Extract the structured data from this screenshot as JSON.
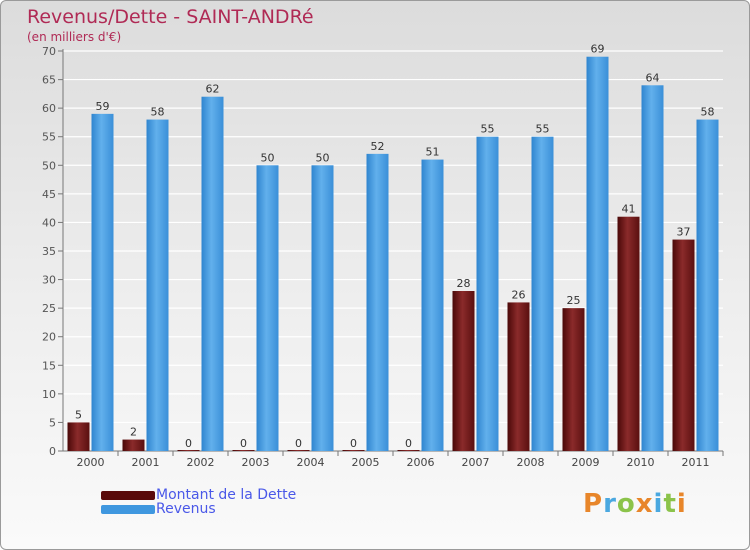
{
  "title": "Revenus/Dette - SAINT-ANDRé",
  "subtitle": "(en milliers d'€)",
  "colors": {
    "debt": "#7a1a1a",
    "revenue": "#3f97df",
    "text": "#b02a55",
    "legend_text": "#4a58e8",
    "grid": "#ffffff"
  },
  "legend": {
    "items": [
      {
        "label": "Montant de la Dette",
        "color": "#5a0a0a"
      },
      {
        "label": "Revenus",
        "color": "#3f97df"
      }
    ]
  },
  "logo": {
    "letters": [
      "P",
      "r",
      "o",
      "x",
      "i",
      "t",
      "i"
    ],
    "colors": [
      "#e8862a",
      "#4aa8e0",
      "#8bc34a",
      "#e8862a",
      "#4aa8e0",
      "#8bc34a",
      "#e8862a"
    ]
  },
  "chart_data": {
    "type": "bar",
    "categories": [
      "2000",
      "2001",
      "2002",
      "2003",
      "2004",
      "2005",
      "2006",
      "2007",
      "2008",
      "2009",
      "2010",
      "2011"
    ],
    "series": [
      {
        "name": "Montant de la Dette",
        "values": [
          5,
          2,
          0,
          0,
          0,
          0,
          0,
          28,
          26,
          25,
          41,
          37
        ]
      },
      {
        "name": "Revenus",
        "values": [
          59,
          58,
          62,
          50,
          50,
          52,
          51,
          55,
          55,
          69,
          64,
          58
        ]
      }
    ],
    "ylim": [
      0,
      70
    ],
    "yticks": [
      0,
      5,
      10,
      15,
      20,
      25,
      30,
      35,
      40,
      45,
      50,
      55,
      60,
      65,
      70
    ],
    "grid": true,
    "legend_position": "bottom-left"
  }
}
